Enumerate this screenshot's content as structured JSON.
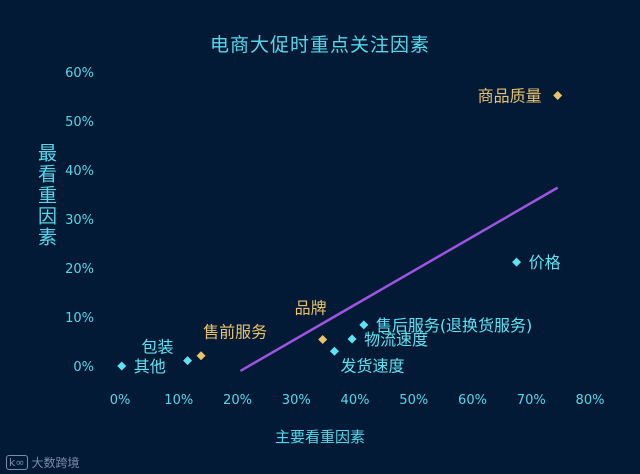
{
  "chart_data": {
    "type": "scatter",
    "title": "电商大促时重点关注因素",
    "xlabel": "主要看重因素",
    "ylabel": "最看重因素",
    "xlim": [
      0,
      80
    ],
    "ylim": [
      0,
      60
    ],
    "x_ticks": [
      "0%",
      "10%",
      "20%",
      "30%",
      "40%",
      "50%",
      "60%",
      "70%",
      "80%"
    ],
    "y_ticks": [
      "0%",
      "10%",
      "20%",
      "30%",
      "40%",
      "50%",
      "60%"
    ],
    "grid": false,
    "points": [
      {
        "label": "商品质量",
        "x": 74.5,
        "y": 55.2,
        "color": "#e8c36a",
        "label_pos": "left"
      },
      {
        "label": "价格",
        "x": 67.5,
        "y": 21.2,
        "color": "#5fe3f2",
        "label_pos": "right"
      },
      {
        "label": "售后服务(退换货服务)",
        "x": 41.5,
        "y": 8.4,
        "color": "#5fe3f2",
        "label_pos": "right"
      },
      {
        "label": "物流速度",
        "x": 39.5,
        "y": 5.5,
        "color": "#5fe3f2",
        "label_pos": "right"
      },
      {
        "label": "发货速度",
        "x": 36.5,
        "y": 3.0,
        "color": "#5fe3f2",
        "label_pos": "right-below"
      },
      {
        "label": "品牌",
        "x": 34.5,
        "y": 5.4,
        "color": "#e8c36a",
        "label_pos": "above-left"
      },
      {
        "label": "售前服务",
        "x": 13.8,
        "y": 2.1,
        "color": "#e8c36a",
        "label_pos": "above-right"
      },
      {
        "label": "包装",
        "x": 11.5,
        "y": 1.1,
        "color": "#5fe3f2",
        "label_pos": "above-left"
      },
      {
        "label": "其他",
        "x": 0.3,
        "y": 0.0,
        "color": "#5fe3f2",
        "label_pos": "right"
      }
    ],
    "trendline": {
      "x": [
        20.5,
        74.5
      ],
      "y": [
        -1.0,
        36.4
      ],
      "color": "#9d55e0"
    }
  },
  "watermark": {
    "logo": "k∞",
    "text": "大数跨境"
  }
}
